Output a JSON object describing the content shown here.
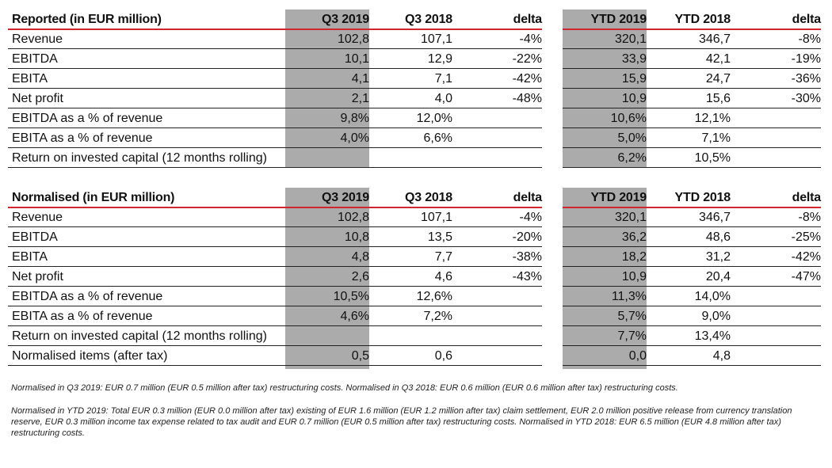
{
  "tables": [
    {
      "title": "Reported (in EUR million)",
      "columns": [
        "Q3 2019",
        "Q3 2018",
        "delta",
        "YTD 2019",
        "YTD 2018",
        "delta"
      ],
      "rows": [
        {
          "label": "Revenue",
          "values": [
            "102,8",
            "107,1",
            "-4%",
            "320,1",
            "346,7",
            "-8%"
          ]
        },
        {
          "label": "EBITDA",
          "values": [
            "10,1",
            "12,9",
            "-22%",
            "33,9",
            "42,1",
            "-19%"
          ]
        },
        {
          "label": "EBITA",
          "values": [
            "4,1",
            "7,1",
            "-42%",
            "15,9",
            "24,7",
            "-36%"
          ]
        },
        {
          "label": "Net profit",
          "values": [
            "2,1",
            "4,0",
            "-48%",
            "10,9",
            "15,6",
            "-30%"
          ]
        },
        {
          "label": "EBITDA as a % of revenue",
          "values": [
            "9,8%",
            "12,0%",
            "",
            "10,6%",
            "12,1%",
            ""
          ]
        },
        {
          "label": "EBITA as a % of revenue",
          "values": [
            "4,0%",
            "6,6%",
            "",
            "5,0%",
            "7,1%",
            ""
          ]
        },
        {
          "label": "Return on invested capital (12 months rolling)",
          "values": [
            "",
            "",
            "",
            "6,2%",
            "10,5%",
            ""
          ]
        }
      ]
    },
    {
      "title": "Normalised (in EUR million)",
      "columns": [
        "Q3 2019",
        "Q3 2018",
        "delta",
        "YTD 2019",
        "YTD 2018",
        "delta"
      ],
      "rows": [
        {
          "label": "Revenue",
          "values": [
            "102,8",
            "107,1",
            "-4%",
            "320,1",
            "346,7",
            "-8%"
          ]
        },
        {
          "label": "EBITDA",
          "values": [
            "10,8",
            "13,5",
            "-20%",
            "36,2",
            "48,6",
            "-25%"
          ]
        },
        {
          "label": "EBITA",
          "values": [
            "4,8",
            "7,7",
            "-38%",
            "18,2",
            "31,2",
            "-42%"
          ]
        },
        {
          "label": "Net profit",
          "values": [
            "2,6",
            "4,6",
            "-43%",
            "10,9",
            "20,4",
            "-47%"
          ]
        },
        {
          "label": "EBITDA as a % of revenue",
          "values": [
            "10,5%",
            "12,6%",
            "",
            "11,3%",
            "14,0%",
            ""
          ]
        },
        {
          "label": "EBITA as a % of revenue",
          "values": [
            "4,6%",
            "7,2%",
            "",
            "5,7%",
            "9,0%",
            ""
          ]
        },
        {
          "label": "Return on invested capital (12 months rolling)",
          "values": [
            "",
            "",
            "",
            "7,7%",
            "13,4%",
            ""
          ]
        },
        {
          "label": "Normalised items (after tax)",
          "values": [
            "0,5",
            "0,6",
            "",
            "0,0",
            "4,8",
            ""
          ]
        }
      ]
    }
  ],
  "notes": [
    "Normalised in Q3 2019: EUR 0.7 million (EUR 0.5 million after tax) restructuring costs. Normalised in Q3 2018: EUR 0.6 million (EUR 0.6 million after tax) restructuring costs.",
    "Normalised in YTD 2019: Total EUR 0.3 million (EUR 0.0 million after tax) existing of EUR 1.6 million (EUR 1.2 million after tax) claim settlement, EUR 2.0 million positive release from currency translation reserve, EUR 0.3 million income tax expense related to tax audit and EUR 0.7 million (EUR 0.5 million after tax) restructuring costs. Normalised in YTD 2018: EUR 6.5 million (EUR 4.8 million after tax) restructuring costs."
  ],
  "colors": {
    "header_shade": "#ababab",
    "accent_line": "#d0262d",
    "rule": "#222222"
  }
}
